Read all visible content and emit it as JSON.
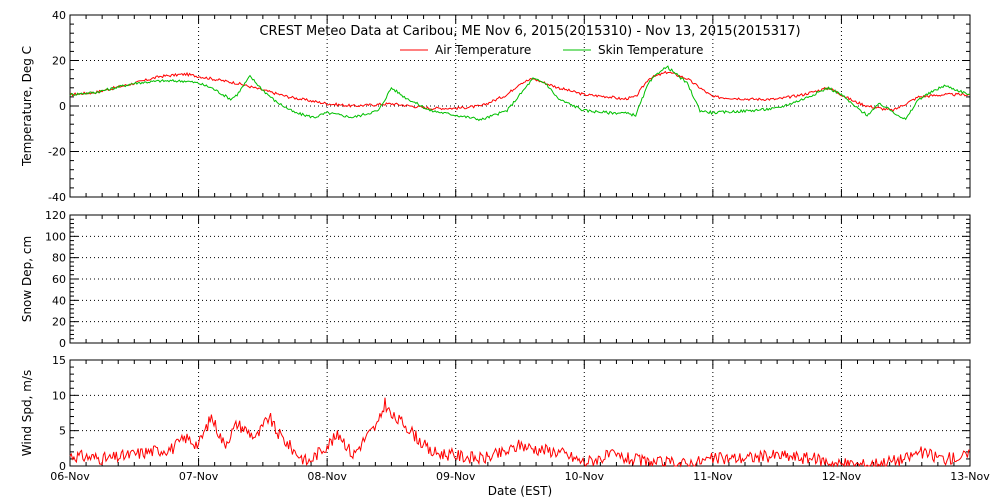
{
  "title": "CREST Meteo Data at Caribou, ME   Nov  6, 2015(2015310) - Nov 13, 2015(2015317)",
  "xlabel": "Date (EST)",
  "colors": {
    "air": "#ff0000",
    "skin": "#00c000",
    "axis": "#000000",
    "wind": "#ff0000"
  },
  "chart_data": [
    {
      "type": "line",
      "ylabel": "Temperature, Deg C",
      "ylim": [
        -40,
        40
      ],
      "yticks": [
        "-40",
        "-20",
        "0",
        "20",
        "40"
      ],
      "xlim": [
        0,
        7
      ],
      "xticks": [
        "06-Nov",
        "07-Nov",
        "08-Nov",
        "09-Nov",
        "10-Nov",
        "11-Nov",
        "12-Nov",
        "13-Nov"
      ],
      "grid": true,
      "legend_position": "top-center",
      "series": [
        {
          "name": "Air Temperature",
          "x": [
            0,
            0.2,
            0.5,
            0.7,
            0.9,
            1.0,
            1.1,
            1.3,
            1.5,
            1.7,
            1.9,
            2.0,
            2.2,
            2.5,
            2.8,
            3.0,
            3.2,
            3.4,
            3.5,
            3.6,
            3.8,
            4.0,
            4.2,
            4.3,
            4.4,
            4.5,
            4.65,
            4.8,
            5.0,
            5.3,
            5.5,
            5.7,
            5.9,
            6.0,
            6.1,
            6.2,
            6.4,
            6.6,
            6.8,
            7.0
          ],
          "values": [
            5,
            6,
            10,
            13,
            14,
            13,
            12,
            10,
            7,
            4,
            2,
            1,
            0,
            1,
            -1,
            -1,
            0,
            5,
            10,
            12,
            8,
            5,
            4,
            3,
            4,
            12,
            15,
            12,
            4,
            3,
            3,
            5,
            8,
            5,
            2,
            0,
            -2,
            4,
            5,
            5
          ]
        },
        {
          "name": "Skin Temperature",
          "x": [
            0,
            0.2,
            0.5,
            0.7,
            0.9,
            1.0,
            1.1,
            1.25,
            1.3,
            1.4,
            1.5,
            1.6,
            1.75,
            1.9,
            2.0,
            2.2,
            2.4,
            2.5,
            2.6,
            2.8,
            3.0,
            3.2,
            3.4,
            3.5,
            3.6,
            3.7,
            3.8,
            4.0,
            4.2,
            4.3,
            4.4,
            4.5,
            4.6,
            4.65,
            4.8,
            4.9,
            5.0,
            5.3,
            5.5,
            5.7,
            5.9,
            6.0,
            6.1,
            6.2,
            6.3,
            6.5,
            6.6,
            6.8,
            7.0
          ],
          "values": [
            5,
            6,
            10,
            11,
            11,
            10,
            8,
            3,
            5,
            13,
            7,
            2,
            -3,
            -5,
            -3,
            -5,
            -2,
            8,
            4,
            -2,
            -4,
            -6,
            -2,
            5,
            12,
            10,
            3,
            -2,
            -3,
            -3,
            -4,
            10,
            16,
            17,
            10,
            -2,
            -3,
            -2,
            -1,
            3,
            8,
            5,
            0,
            -4,
            1,
            -6,
            3,
            9,
            5
          ]
        }
      ]
    },
    {
      "type": "line",
      "ylabel": "Snow Dep, cm",
      "ylim": [
        0,
        120
      ],
      "yticks": [
        "0",
        "20",
        "40",
        "60",
        "80",
        "100",
        "120"
      ],
      "xlim": [
        0,
        7
      ],
      "grid": true,
      "series": []
    },
    {
      "type": "line",
      "ylabel": "Wind Spd, m/s",
      "ylim": [
        0,
        15
      ],
      "yticks": [
        "0",
        "5",
        "10",
        "15"
      ],
      "xlim": [
        0,
        7
      ],
      "grid": true,
      "series": [
        {
          "name": "",
          "x": [
            0,
            0.3,
            0.6,
            0.8,
            0.9,
            1.0,
            1.1,
            1.2,
            1.3,
            1.45,
            1.55,
            1.6,
            1.75,
            1.85,
            2.0,
            2.1,
            2.2,
            2.3,
            2.4,
            2.45,
            2.5,
            2.6,
            2.8,
            3.0,
            3.2,
            3.4,
            3.5,
            3.6,
            3.8,
            4.0,
            4.2,
            4.5,
            4.8,
            5.0,
            5.3,
            5.5,
            5.8,
            6.0,
            6.2,
            6.5,
            6.6,
            6.8,
            7.0
          ],
          "values": [
            1.5,
            1,
            2,
            2.5,
            4,
            3,
            7,
            3,
            6,
            4,
            7,
            5,
            2,
            0.5,
            3,
            4.5,
            1.5,
            4,
            6,
            9,
            7,
            6,
            2,
            1.5,
            1,
            2,
            3,
            2.5,
            2,
            0.5,
            1.5,
            0.5,
            0.3,
            1,
            1.2,
            1.5,
            1,
            0.2,
            0.2,
            1,
            2,
            1,
            1.5
          ]
        }
      ]
    }
  ]
}
